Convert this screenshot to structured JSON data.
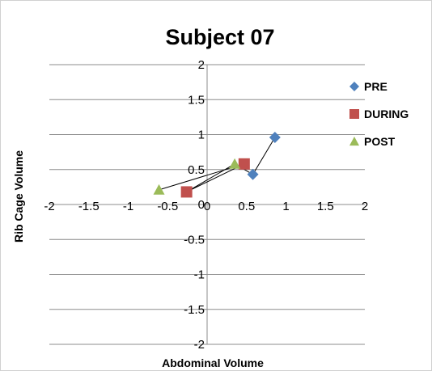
{
  "chart_data": {
    "type": "scatter",
    "title": "Subject 07",
    "xlabel": "Abdominal Volume",
    "ylabel": "Rib Cage Volume",
    "xlim": [
      -2,
      2
    ],
    "ylim": [
      -2,
      2
    ],
    "x_ticks": [
      "-2",
      "-1.5",
      "-1",
      "-0.5",
      "0",
      "0.5",
      "1",
      "1.5",
      "2"
    ],
    "y_ticks": [
      "2",
      "1.5",
      "1",
      "0.5",
      "0",
      "-0.5",
      "-1",
      "-1.5",
      "-2"
    ],
    "grid": "horizontal",
    "legend_position": "right",
    "series": [
      {
        "name": "PRE",
        "marker": "diamond",
        "color": "#4F81BD",
        "points": [
          {
            "x": 0.58,
            "y": 0.43
          },
          {
            "x": 0.86,
            "y": 0.96
          }
        ]
      },
      {
        "name": "DURING",
        "marker": "square",
        "color": "#C0504D",
        "points": [
          {
            "x": -0.26,
            "y": 0.18
          },
          {
            "x": 0.47,
            "y": 0.58
          }
        ]
      },
      {
        "name": "POST",
        "marker": "triangle",
        "color": "#9BBB59",
        "points": [
          {
            "x": -0.61,
            "y": 0.21
          },
          {
            "x": 0.35,
            "y": 0.58
          }
        ]
      }
    ],
    "connector_line": [
      {
        "x": -0.61,
        "y": 0.21
      },
      {
        "x": 0.47,
        "y": 0.58
      },
      {
        "x": -0.26,
        "y": 0.18
      },
      {
        "x": 0.35,
        "y": 0.58
      },
      {
        "x": 0.58,
        "y": 0.43
      },
      {
        "x": 0.86,
        "y": 0.96
      }
    ]
  }
}
